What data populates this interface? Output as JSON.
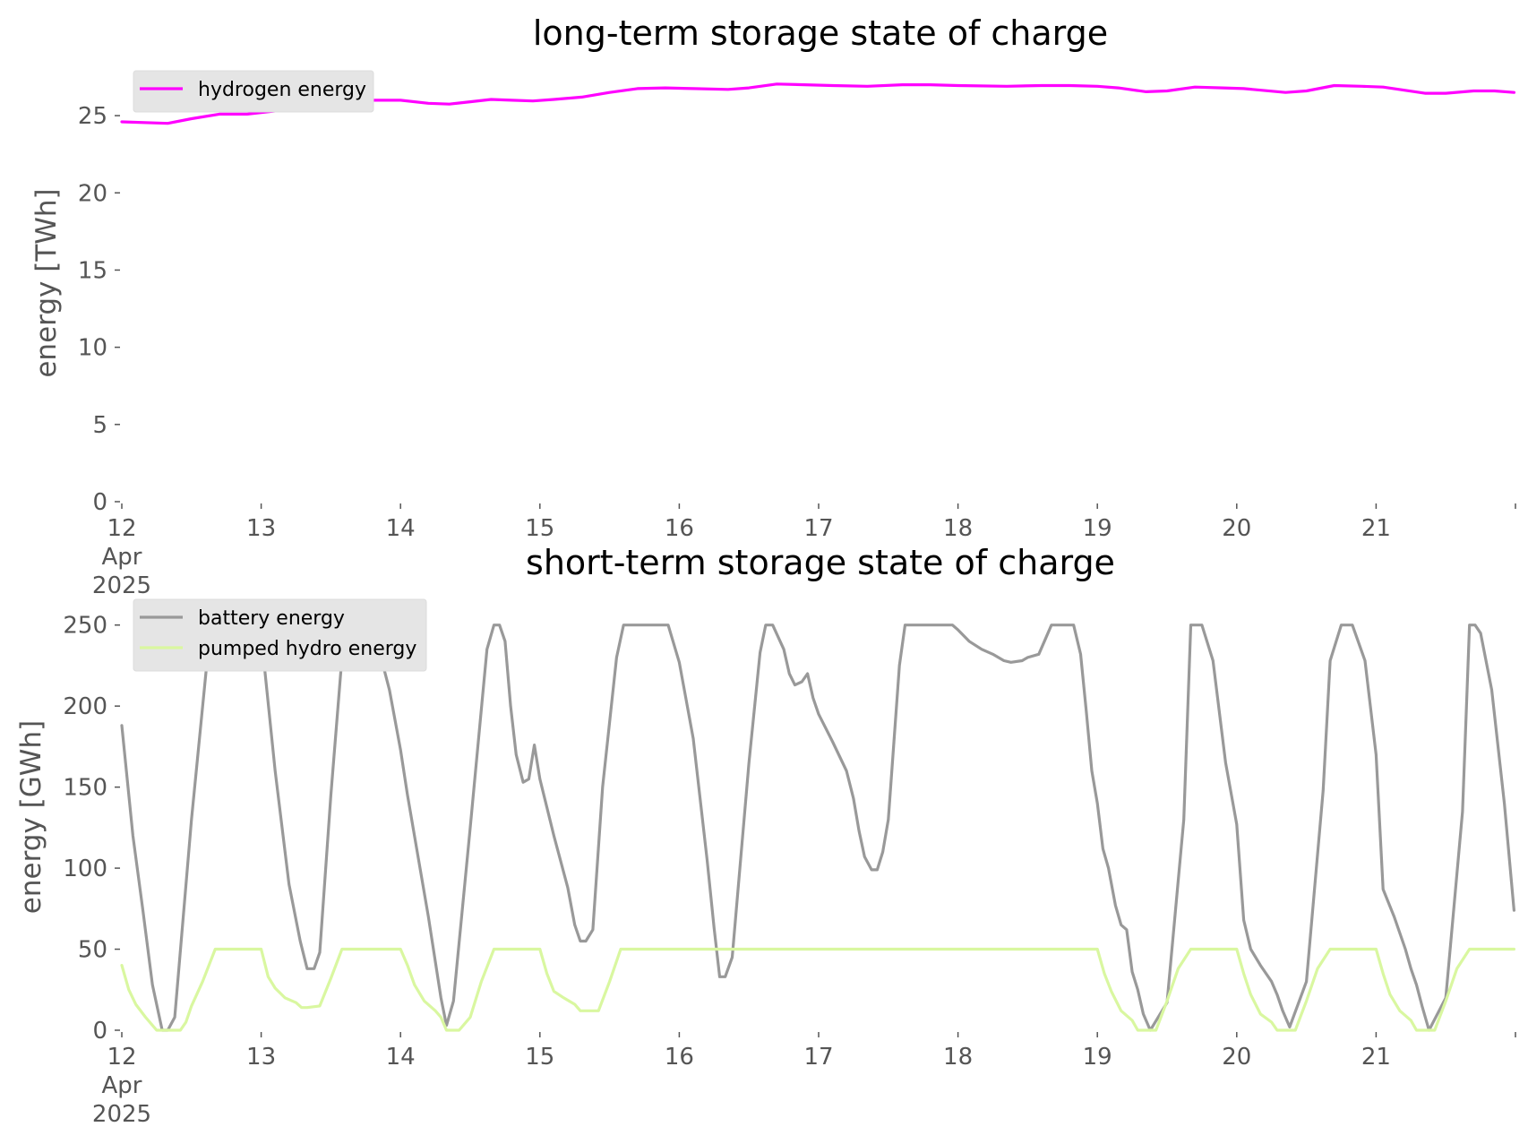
{
  "chart_data": [
    {
      "type": "line",
      "title": "long-term storage state of charge",
      "xlabel": "",
      "ylabel": "energy [TWh]",
      "xlim": [
        12,
        22
      ],
      "ylim": [
        0,
        27.5
      ],
      "yticks": [
        0,
        5,
        10,
        15,
        20,
        25
      ],
      "xticks": [
        {
          "value": 12,
          "lines": [
            "12",
            "Apr",
            "2025"
          ]
        },
        {
          "value": 13,
          "lines": [
            "13"
          ]
        },
        {
          "value": 14,
          "lines": [
            "14"
          ]
        },
        {
          "value": 15,
          "lines": [
            "15"
          ]
        },
        {
          "value": 16,
          "lines": [
            "16"
          ]
        },
        {
          "value": 17,
          "lines": [
            "17"
          ]
        },
        {
          "value": 18,
          "lines": [
            "18"
          ]
        },
        {
          "value": 19,
          "lines": [
            "19"
          ]
        },
        {
          "value": 20,
          "lines": [
            "20"
          ]
        },
        {
          "value": 21,
          "lines": [
            "21"
          ]
        }
      ],
      "grid": false,
      "legend_position": "top-left",
      "series": [
        {
          "name": "hydrogen energy",
          "color": "#ff00ff",
          "x": [
            12.0,
            12.33,
            12.5,
            12.7,
            12.9,
            13.1,
            13.35,
            13.6,
            13.8,
            14.0,
            14.2,
            14.35,
            14.5,
            14.65,
            14.8,
            14.95,
            15.1,
            15.3,
            15.5,
            15.7,
            15.9,
            16.1,
            16.35,
            16.5,
            16.7,
            16.9,
            17.1,
            17.35,
            17.6,
            17.8,
            18.0,
            18.35,
            18.6,
            18.8,
            19.0,
            19.15,
            19.35,
            19.5,
            19.7,
            19.9,
            20.05,
            20.35,
            20.5,
            20.7,
            20.9,
            21.05,
            21.35,
            21.5,
            21.7,
            21.85,
            21.99
          ],
          "y": [
            24.6,
            24.5,
            24.8,
            25.1,
            25.1,
            25.3,
            25.5,
            25.9,
            26.0,
            26.0,
            25.8,
            25.75,
            25.9,
            26.05,
            26.0,
            25.95,
            26.05,
            26.2,
            26.5,
            26.75,
            26.8,
            26.75,
            26.7,
            26.8,
            27.05,
            27.0,
            26.95,
            26.9,
            27.0,
            27.0,
            26.95,
            26.9,
            26.95,
            26.95,
            26.9,
            26.8,
            26.55,
            26.6,
            26.85,
            26.8,
            26.75,
            26.5,
            26.6,
            26.95,
            26.9,
            26.85,
            26.45,
            26.45,
            26.6,
            26.6,
            26.5
          ]
        }
      ]
    },
    {
      "type": "line",
      "title": "short-term storage state of charge",
      "xlabel": "",
      "ylabel": "energy [GWh]",
      "xlim": [
        12,
        22
      ],
      "ylim": [
        0,
        262
      ],
      "yticks": [
        0,
        50,
        100,
        150,
        200,
        250
      ],
      "xticks": [
        {
          "value": 12,
          "lines": [
            "12",
            "Apr",
            "2025"
          ]
        },
        {
          "value": 13,
          "lines": [
            "13"
          ]
        },
        {
          "value": 14,
          "lines": [
            "14"
          ]
        },
        {
          "value": 15,
          "lines": [
            "15"
          ]
        },
        {
          "value": 16,
          "lines": [
            "16"
          ]
        },
        {
          "value": 17,
          "lines": [
            "17"
          ]
        },
        {
          "value": 18,
          "lines": [
            "18"
          ]
        },
        {
          "value": 19,
          "lines": [
            "19"
          ]
        },
        {
          "value": 20,
          "lines": [
            "20"
          ]
        },
        {
          "value": 21,
          "lines": [
            "21"
          ]
        }
      ],
      "grid": false,
      "legend_position": "top-left",
      "series": [
        {
          "name": "battery energy",
          "color": "#999999",
          "x": [
            12.0,
            12.08,
            12.15,
            12.22,
            12.29,
            12.33,
            12.38,
            12.5,
            12.62,
            12.67,
            12.75,
            12.9,
            13.0,
            13.1,
            13.2,
            13.28,
            13.33,
            13.38,
            13.42,
            13.5,
            13.58,
            13.67,
            13.75,
            13.83,
            13.92,
            14.0,
            14.05,
            14.13,
            14.2,
            14.29,
            14.33,
            14.38,
            14.5,
            14.62,
            14.67,
            14.71,
            14.75,
            14.79,
            14.83,
            14.88,
            14.92,
            14.96,
            15.0,
            15.1,
            15.2,
            15.25,
            15.29,
            15.33,
            15.38,
            15.45,
            15.55,
            15.6,
            15.62,
            15.67,
            15.75,
            15.83,
            15.92,
            16.0,
            16.1,
            16.2,
            16.25,
            16.29,
            16.33,
            16.38,
            16.5,
            16.58,
            16.62,
            16.67,
            16.75,
            16.79,
            16.83,
            16.88,
            16.92,
            16.96,
            17.0,
            17.1,
            17.2,
            17.25,
            17.29,
            17.33,
            17.38,
            17.42,
            17.46,
            17.5,
            17.58,
            17.62,
            17.67,
            17.75,
            17.83,
            17.92,
            17.96,
            18.0,
            18.08,
            18.17,
            18.25,
            18.29,
            18.33,
            18.38,
            18.46,
            18.5,
            18.58,
            18.62,
            18.67,
            18.75,
            18.79,
            18.83,
            18.88,
            18.92,
            18.96,
            19.0,
            19.04,
            19.08,
            19.13,
            19.17,
            19.21,
            19.25,
            19.29,
            19.33,
            19.38,
            19.5,
            19.62,
            19.67,
            19.75,
            19.83,
            19.92,
            20.0,
            20.05,
            20.1,
            20.17,
            20.25,
            20.29,
            20.33,
            20.38,
            20.5,
            20.62,
            20.67,
            20.75,
            20.83,
            20.92,
            21.0,
            21.05,
            21.13,
            21.21,
            21.25,
            21.29,
            21.33,
            21.38,
            21.5,
            21.62,
            21.67,
            21.71,
            21.75,
            21.83,
            21.92,
            21.99
          ],
          "y": [
            188,
            120,
            75,
            28,
            0,
            0,
            8,
            130,
            235,
            250,
            250,
            250,
            244,
            160,
            90,
            55,
            38,
            38,
            48,
            145,
            230,
            250,
            250,
            240,
            210,
            173,
            145,
            105,
            70,
            20,
            3,
            18,
            125,
            235,
            250,
            250,
            240,
            200,
            170,
            153,
            155,
            176,
            155,
            120,
            88,
            65,
            55,
            55,
            62,
            150,
            230,
            250,
            250,
            250,
            250,
            250,
            250,
            227,
            180,
            105,
            63,
            33,
            33,
            45,
            165,
            233,
            250,
            250,
            235,
            220,
            213,
            215,
            220,
            205,
            195,
            178,
            160,
            143,
            123,
            107,
            99,
            99,
            110,
            130,
            225,
            250,
            250,
            250,
            250,
            250,
            250,
            247,
            240,
            235,
            232,
            230,
            228,
            227,
            228,
            230,
            232,
            240,
            250,
            250,
            250,
            250,
            232,
            197,
            160,
            140,
            112,
            100,
            77,
            65,
            62,
            36,
            25,
            10,
            0,
            17,
            130,
            250,
            250,
            228,
            165,
            127,
            68,
            50,
            40,
            30,
            22,
            12,
            2,
            30,
            148,
            228,
            250,
            250,
            228,
            170,
            87,
            70,
            50,
            38,
            28,
            15,
            0,
            20,
            135,
            250,
            250,
            245,
            210,
            140,
            74
          ]
        },
        {
          "name": "pumped hydro energy",
          "color": "#d9f7a0",
          "x": [
            12.0,
            12.05,
            12.1,
            12.17,
            12.25,
            12.33,
            12.42,
            12.46,
            12.5,
            12.58,
            12.67,
            12.75,
            12.83,
            12.92,
            13.0,
            13.05,
            13.1,
            13.17,
            13.25,
            13.29,
            13.33,
            13.42,
            13.5,
            13.58,
            13.67,
            13.75,
            13.83,
            13.92,
            14.0,
            14.05,
            14.1,
            14.17,
            14.25,
            14.29,
            14.33,
            14.42,
            14.5,
            14.58,
            14.67,
            14.75,
            14.83,
            14.92,
            15.0,
            15.05,
            15.1,
            15.17,
            15.25,
            15.29,
            15.33,
            15.42,
            15.5,
            15.58,
            15.67,
            16.0,
            17.0,
            18.0,
            18.5,
            18.92,
            19.0,
            19.05,
            19.1,
            19.17,
            19.25,
            19.29,
            19.33,
            19.42,
            19.5,
            19.58,
            19.67,
            19.75,
            19.83,
            19.92,
            20.0,
            20.05,
            20.1,
            20.17,
            20.25,
            20.29,
            20.33,
            20.42,
            20.5,
            20.58,
            20.67,
            20.75,
            20.83,
            20.92,
            21.0,
            21.05,
            21.1,
            21.17,
            21.25,
            21.29,
            21.33,
            21.42,
            21.5,
            21.58,
            21.67,
            21.75,
            21.83,
            21.92,
            21.99
          ],
          "y": [
            40,
            25,
            16,
            8,
            0,
            0,
            0,
            5,
            15,
            30,
            50,
            50,
            50,
            50,
            50,
            33,
            26,
            20,
            17,
            14,
            14,
            15,
            32,
            50,
            50,
            50,
            50,
            50,
            50,
            40,
            28,
            18,
            12,
            8,
            0,
            0,
            8,
            30,
            50,
            50,
            50,
            50,
            50,
            35,
            24,
            20,
            16,
            12,
            12,
            12,
            30,
            50,
            50,
            50,
            50,
            50,
            50,
            50,
            50,
            35,
            24,
            12,
            6,
            0,
            0,
            0,
            18,
            38,
            50,
            50,
            50,
            50,
            50,
            35,
            22,
            10,
            5,
            0,
            0,
            0,
            18,
            38,
            50,
            50,
            50,
            50,
            50,
            35,
            22,
            12,
            6,
            0,
            0,
            0,
            18,
            38,
            50,
            50,
            50,
            50,
            50
          ]
        }
      ]
    }
  ]
}
